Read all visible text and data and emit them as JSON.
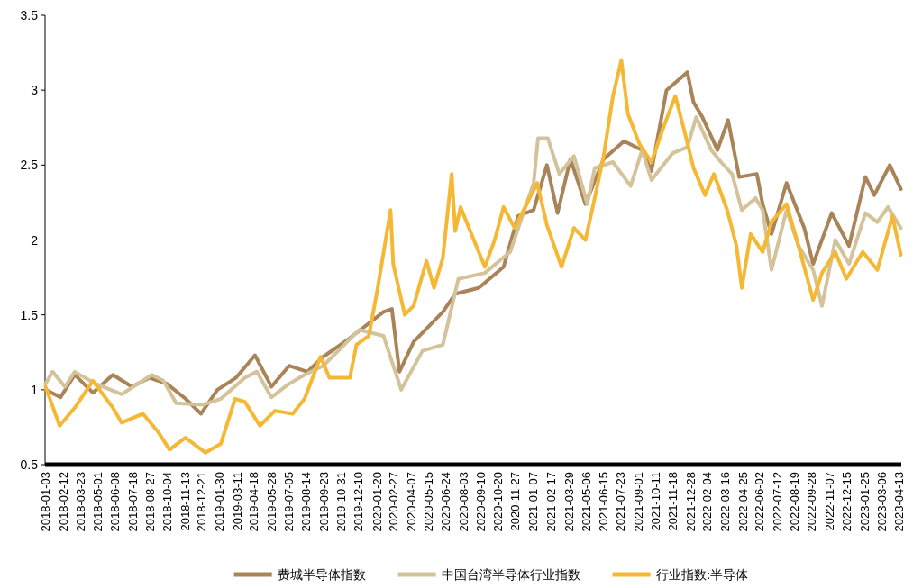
{
  "chart_data": {
    "type": "line",
    "legend": "bottom",
    "line_style": "solid",
    "xlim": [
      "2018-01-02",
      "2023-04-19"
    ],
    "ylim": [
      0.5,
      3.5
    ],
    "yticks": [
      0.5,
      1,
      1.5,
      2,
      2.5,
      3,
      3.5
    ],
    "xticks": [
      {
        "value": "2018-01-03",
        "label": "2018-01-03"
      },
      {
        "value": "2018-02-12",
        "label": "2018-02-12"
      },
      {
        "value": "2018-03-23",
        "label": "2018-03-23"
      },
      {
        "value": "2018-05-01",
        "label": "2018-05-01"
      },
      {
        "value": "2018-06-08",
        "label": "2018-06-08"
      },
      {
        "value": "2018-07-18",
        "label": "2018-07-18"
      },
      {
        "value": "2018-08-27",
        "label": "2018-08-27"
      },
      {
        "value": "2018-10-04",
        "label": "2018-10-04"
      },
      {
        "value": "2018-11-13",
        "label": "2018-11-13"
      },
      {
        "value": "2018-12-21",
        "label": "2018-12-21"
      },
      {
        "value": "2019-01-30",
        "label": "2019-01-30"
      },
      {
        "value": "2019-03-11",
        "label": "2019-03-11"
      },
      {
        "value": "2019-04-18",
        "label": "2019-04-18"
      },
      {
        "value": "2019-05-28",
        "label": "2019-05-28"
      },
      {
        "value": "2019-07-05",
        "label": "2019-07-05"
      },
      {
        "value": "2019-08-14",
        "label": "2019-08-14"
      },
      {
        "value": "2019-09-23",
        "label": "2019-09-23"
      },
      {
        "value": "2019-10-31",
        "label": "2019-10-31"
      },
      {
        "value": "2019-12-10",
        "label": "2019-12-10"
      },
      {
        "value": "2020-01-20",
        "label": "2020-01-20"
      },
      {
        "value": "2020-02-27",
        "label": "2020-02-27"
      },
      {
        "value": "2020-04-07",
        "label": "2020-04-07"
      },
      {
        "value": "2020-05-15",
        "label": "2020-05-15"
      },
      {
        "value": "2020-06-24",
        "label": "2020-06-24"
      },
      {
        "value": "2020-08-03",
        "label": "2020-08-03"
      },
      {
        "value": "2020-09-10",
        "label": "2020-09-10"
      },
      {
        "value": "2020-10-20",
        "label": "2020-10-20"
      },
      {
        "value": "2020-11-27",
        "label": "2020-11-27"
      },
      {
        "value": "2021-01-07",
        "label": "2021-01-07"
      },
      {
        "value": "2021-02-17",
        "label": "2021-02-17"
      },
      {
        "value": "2021-03-29",
        "label": "2021-03-29"
      },
      {
        "value": "2021-05-06",
        "label": "2021-05-06"
      },
      {
        "value": "2021-06-15",
        "label": "2021-06-15"
      },
      {
        "value": "2021-07-23",
        "label": "2021-07-23"
      },
      {
        "value": "2021-09-01",
        "label": "2021-09-01"
      },
      {
        "value": "2021-10-11",
        "label": "2021-10-11"
      },
      {
        "value": "2021-11-18",
        "label": "2021-11-18"
      },
      {
        "value": "2021-12-28",
        "label": "2021-12-28"
      },
      {
        "value": "2022-02-04",
        "label": "2022-02-04"
      },
      {
        "value": "2022-03-16",
        "label": "2022-03-16"
      },
      {
        "value": "2022-04-25",
        "label": "2022-04-25"
      },
      {
        "value": "2022-06-02",
        "label": "2022-06-02"
      },
      {
        "value": "2022-07-12",
        "label": "2022-07-12"
      },
      {
        "value": "2022-08-19",
        "label": "2022-08-19"
      },
      {
        "value": "2022-09-28",
        "label": "2022-09-28"
      },
      {
        "value": "2022-11-07",
        "label": "2022-11-07"
      },
      {
        "value": "2022-12-15",
        "label": "2022-12-15"
      },
      {
        "value": "2023-01-25",
        "label": "2023-01-25"
      },
      {
        "value": "2023-03-06",
        "label": "2023-03-06"
      },
      {
        "value": "2023-04-13",
        "label": "2023-04-13"
      }
    ],
    "series": [
      {
        "name": "费城半导体指数",
        "color": "#a98459",
        "x": [
          "2018-01-03",
          "2018-02-06",
          "2018-03-10",
          "2018-04-20",
          "2018-06-04",
          "2018-07-17",
          "2018-08-26",
          "2018-10-04",
          "2018-11-15",
          "2018-12-20",
          "2019-01-26",
          "2019-03-09",
          "2019-04-21",
          "2019-05-28",
          "2019-07-07",
          "2019-08-17",
          "2019-09-22",
          "2019-11-19",
          "2020-02-05",
          "2020-02-24",
          "2020-03-12",
          "2020-04-13",
          "2020-06-18",
          "2020-07-16",
          "2020-09-07",
          "2020-11-02",
          "2020-12-05",
          "2021-01-09",
          "2021-02-08",
          "2021-03-04",
          "2021-04-02",
          "2021-05-06",
          "2021-06-16",
          "2021-08-01",
          "2021-09-11",
          "2021-10-02",
          "2021-11-05",
          "2021-12-22",
          "2022-01-05",
          "2022-01-25",
          "2022-02-28",
          "2022-03-24",
          "2022-04-18",
          "2022-05-28",
          "2022-06-10",
          "2022-06-30",
          "2022-08-03",
          "2022-09-12",
          "2022-10-02",
          "2022-11-13",
          "2022-12-22",
          "2023-01-28",
          "2023-02-17",
          "2023-03-24",
          "2023-04-18"
        ],
        "values": [
          1.0,
          0.95,
          1.1,
          0.98,
          1.1,
          1.02,
          1.08,
          1.04,
          0.94,
          0.84,
          1.0,
          1.08,
          1.23,
          1.02,
          1.16,
          1.12,
          1.22,
          1.34,
          1.52,
          1.54,
          1.12,
          1.32,
          1.52,
          1.64,
          1.68,
          1.82,
          2.16,
          2.2,
          2.5,
          2.18,
          2.54,
          2.24,
          2.54,
          2.66,
          2.6,
          2.46,
          3.0,
          3.12,
          2.92,
          2.82,
          2.6,
          2.8,
          2.42,
          2.44,
          2.24,
          2.04,
          2.38,
          2.08,
          1.84,
          2.18,
          1.96,
          2.42,
          2.3,
          2.5,
          2.34
        ]
      },
      {
        "name": "中国台湾半导体行业指数",
        "color": "#d4c39a",
        "x": [
          "2018-01-03",
          "2018-01-19",
          "2018-02-16",
          "2018-03-10",
          "2018-04-26",
          "2018-06-24",
          "2018-08-31",
          "2018-09-26",
          "2018-10-25",
          "2018-12-24",
          "2019-02-03",
          "2019-03-29",
          "2019-04-25",
          "2019-05-28",
          "2019-07-07",
          "2019-08-11",
          "2019-09-22",
          "2019-12-12",
          "2020-02-05",
          "2020-03-16",
          "2020-05-03",
          "2020-06-18",
          "2020-07-23",
          "2020-09-21",
          "2020-11-17",
          "2021-01-09",
          "2021-01-19",
          "2021-02-10",
          "2021-03-08",
          "2021-04-10",
          "2021-05-10",
          "2021-05-27",
          "2021-07-07",
          "2021-08-16",
          "2021-09-11",
          "2021-10-02",
          "2021-11-19",
          "2021-12-22",
          "2022-01-11",
          "2022-02-14",
          "2022-03-08",
          "2022-04-02",
          "2022-04-24",
          "2022-05-25",
          "2022-06-10",
          "2022-06-30",
          "2022-08-03",
          "2022-08-30",
          "2022-10-02",
          "2022-10-22",
          "2022-11-21",
          "2022-12-22",
          "2023-01-28",
          "2023-02-24",
          "2023-03-20",
          "2023-04-18"
        ],
        "values": [
          1.04,
          1.12,
          1.02,
          1.12,
          1.04,
          0.97,
          1.1,
          1.06,
          0.91,
          0.9,
          0.94,
          1.08,
          1.12,
          0.95,
          1.04,
          1.1,
          1.16,
          1.4,
          1.36,
          1.0,
          1.26,
          1.3,
          1.74,
          1.78,
          1.92,
          2.38,
          2.68,
          2.68,
          2.44,
          2.56,
          2.24,
          2.48,
          2.52,
          2.36,
          2.6,
          2.4,
          2.58,
          2.62,
          2.82,
          2.6,
          2.52,
          2.44,
          2.2,
          2.28,
          2.2,
          1.8,
          2.2,
          1.96,
          1.8,
          1.56,
          2.0,
          1.84,
          2.18,
          2.12,
          2.22,
          2.08
        ]
      },
      {
        "name": "行业指数:半导体",
        "color": "#f4b835",
        "x": [
          "2018-01-03",
          "2018-02-04",
          "2018-03-10",
          "2018-04-20",
          "2018-06-04",
          "2018-06-24",
          "2018-08-11",
          "2018-09-14",
          "2018-10-10",
          "2018-11-15",
          "2018-12-30",
          "2019-02-03",
          "2019-03-07",
          "2019-03-29",
          "2019-05-02",
          "2019-06-05",
          "2019-07-15",
          "2019-08-11",
          "2019-09-16",
          "2019-10-06",
          "2019-11-21",
          "2019-12-06",
          "2020-01-03",
          "2020-01-23",
          "2020-02-21",
          "2020-02-27",
          "2020-03-24",
          "2020-04-13",
          "2020-05-12",
          "2020-05-29",
          "2020-06-18",
          "2020-07-08",
          "2020-07-16",
          "2020-07-28",
          "2020-08-27",
          "2020-09-21",
          "2020-10-13",
          "2020-11-02",
          "2020-11-27",
          "2021-01-17",
          "2021-02-08",
          "2021-03-13",
          "2021-04-10",
          "2021-05-06",
          "2021-05-27",
          "2021-06-16",
          "2021-07-07",
          "2021-07-26",
          "2021-08-10",
          "2021-09-05",
          "2021-10-02",
          "2021-10-30",
          "2021-11-25",
          "2021-12-16",
          "2022-01-05",
          "2022-01-31",
          "2022-02-20",
          "2022-03-22",
          "2022-04-12",
          "2022-04-24",
          "2022-05-14",
          "2022-06-10",
          "2022-06-30",
          "2022-08-03",
          "2022-08-30",
          "2022-10-02",
          "2022-10-22",
          "2022-11-21",
          "2022-12-16",
          "2023-01-22",
          "2023-02-24",
          "2023-03-30",
          "2023-04-18"
        ],
        "values": [
          1.02,
          0.76,
          0.88,
          1.06,
          0.88,
          0.78,
          0.84,
          0.72,
          0.6,
          0.68,
          0.58,
          0.64,
          0.94,
          0.92,
          0.76,
          0.86,
          0.84,
          0.94,
          1.22,
          1.08,
          1.08,
          1.3,
          1.36,
          1.68,
          2.2,
          1.84,
          1.5,
          1.56,
          1.86,
          1.68,
          1.88,
          2.44,
          2.06,
          2.22,
          2.0,
          1.82,
          2.0,
          2.22,
          2.08,
          2.38,
          2.1,
          1.82,
          2.08,
          2.0,
          2.28,
          2.56,
          2.96,
          3.2,
          2.84,
          2.64,
          2.52,
          2.76,
          2.96,
          2.72,
          2.48,
          2.3,
          2.44,
          2.2,
          1.96,
          1.68,
          2.04,
          1.92,
          2.12,
          2.24,
          1.96,
          1.6,
          1.78,
          1.92,
          1.74,
          1.92,
          1.8,
          2.16,
          1.9
        ]
      }
    ]
  }
}
